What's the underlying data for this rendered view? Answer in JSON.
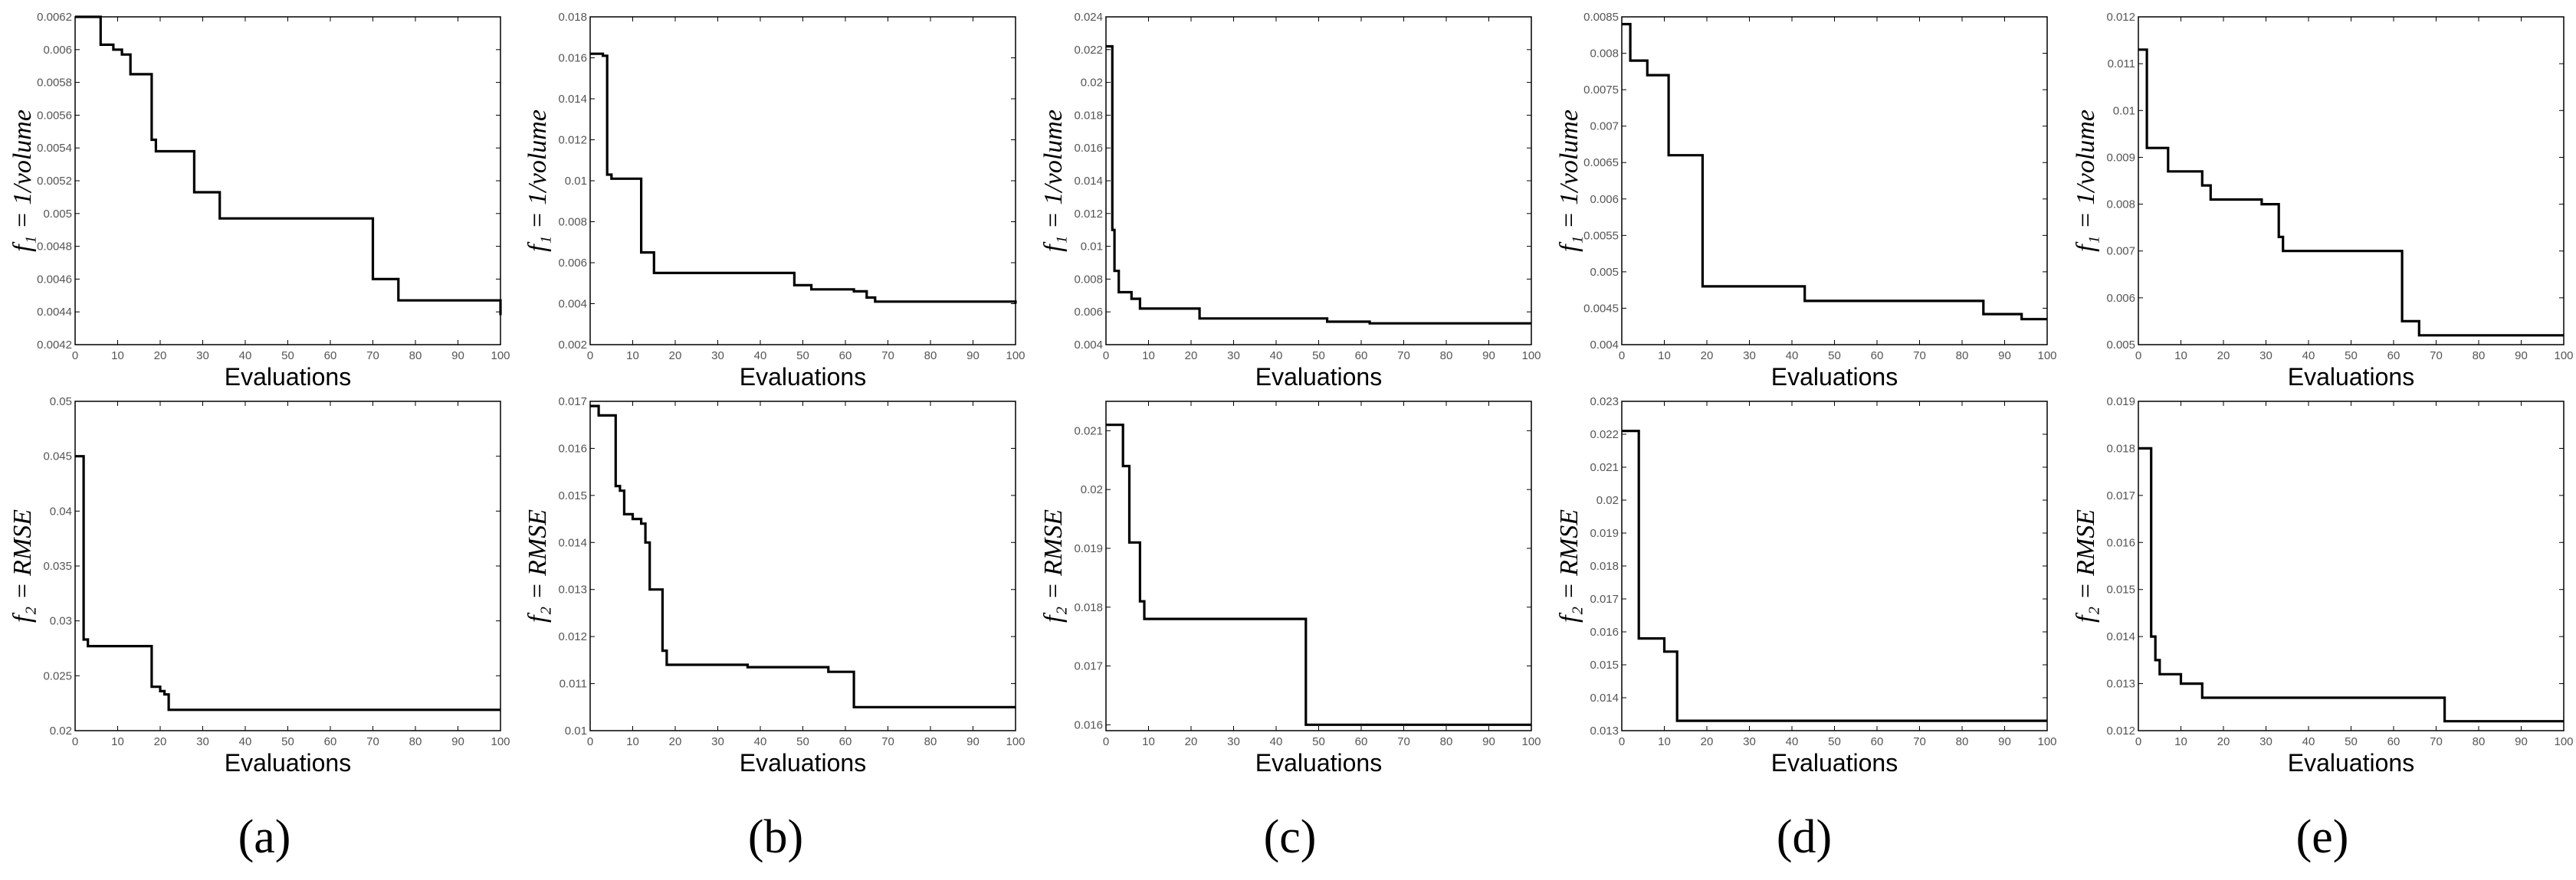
{
  "chart_data": [
    {
      "panel": "a",
      "row": 1,
      "type": "line",
      "title": "",
      "xlabel": "Evaluations",
      "ylabel": "f₁ = 1/volume",
      "xlim": [
        0,
        100
      ],
      "ylim": [
        0.0042,
        0.0062
      ],
      "xticks": [
        "0",
        "10",
        "20",
        "30",
        "40",
        "50",
        "60",
        "70",
        "80",
        "90",
        "100"
      ],
      "yticks": [
        "0.0042",
        "0.0044",
        "0.0046",
        "0.0048",
        "0.005",
        "0.0052",
        "0.0054",
        "0.0056",
        "0.0058",
        "0.006",
        "0.0062"
      ],
      "steps": [
        [
          0,
          0.0062
        ],
        [
          6,
          0.00603
        ],
        [
          9,
          0.006
        ],
        [
          11,
          0.00597
        ],
        [
          13,
          0.00585
        ],
        [
          17,
          0.00585
        ],
        [
          18,
          0.00545
        ],
        [
          19,
          0.00538
        ],
        [
          27,
          0.00538
        ],
        [
          28,
          0.00513
        ],
        [
          32,
          0.00513
        ],
        [
          34,
          0.00497
        ],
        [
          69,
          0.00497
        ],
        [
          70,
          0.0046
        ],
        [
          75,
          0.0046
        ],
        [
          76,
          0.00447
        ],
        [
          99,
          0.00447
        ],
        [
          100,
          0.00438
        ]
      ]
    },
    {
      "panel": "b",
      "row": 1,
      "type": "line",
      "title": "",
      "xlabel": "Evaluations",
      "ylabel": "f₁ = 1/volume",
      "xlim": [
        0,
        100
      ],
      "ylim": [
        0.002,
        0.018
      ],
      "xticks": [
        "0",
        "10",
        "20",
        "30",
        "40",
        "50",
        "60",
        "70",
        "80",
        "90",
        "100"
      ],
      "yticks": [
        "0.002",
        "0.004",
        "0.006",
        "0.008",
        "0.01",
        "0.012",
        "0.014",
        "0.016",
        "0.018"
      ],
      "steps": [
        [
          0,
          0.0162
        ],
        [
          3,
          0.0161
        ],
        [
          4,
          0.0103
        ],
        [
          5,
          0.0101
        ],
        [
          11,
          0.0101
        ],
        [
          12,
          0.0065
        ],
        [
          14,
          0.0065
        ],
        [
          15,
          0.0055
        ],
        [
          47,
          0.0055
        ],
        [
          48,
          0.0049
        ],
        [
          52,
          0.0047
        ],
        [
          60,
          0.0047
        ],
        [
          62,
          0.0046
        ],
        [
          65,
          0.0043
        ],
        [
          67,
          0.0041
        ],
        [
          100,
          0.004
        ]
      ]
    },
    {
      "panel": "c",
      "row": 1,
      "type": "line",
      "title": "",
      "xlabel": "Evaluations",
      "ylabel": "f₁ = 1/volume",
      "xlim": [
        0,
        100
      ],
      "ylim": [
        0.004,
        0.024
      ],
      "xticks": [
        "0",
        "10",
        "20",
        "30",
        "40",
        "50",
        "60",
        "70",
        "80",
        "90",
        "100"
      ],
      "yticks": [
        "0.004",
        "0.006",
        "0.008",
        "0.01",
        "0.012",
        "0.014",
        "0.016",
        "0.018",
        "0.02",
        "0.022",
        "0.024"
      ],
      "steps": [
        [
          0,
          0.0222
        ],
        [
          1,
          0.0222
        ],
        [
          1.5,
          0.011
        ],
        [
          2,
          0.0085
        ],
        [
          3,
          0.0072
        ],
        [
          6,
          0.0068
        ],
        [
          8,
          0.0062
        ],
        [
          21,
          0.0062
        ],
        [
          22,
          0.0056
        ],
        [
          51,
          0.0056
        ],
        [
          52,
          0.0054
        ],
        [
          60,
          0.0054
        ],
        [
          62,
          0.0053
        ],
        [
          100,
          0.0053
        ]
      ]
    },
    {
      "panel": "d",
      "row": 1,
      "type": "line",
      "title": "",
      "xlabel": "Evaluations",
      "ylabel": "f₁ = 1/volume",
      "xlim": [
        0,
        100
      ],
      "ylim": [
        0.004,
        0.0085
      ],
      "xticks": [
        "0",
        "10",
        "20",
        "30",
        "40",
        "50",
        "60",
        "70",
        "80",
        "90",
        "100"
      ],
      "yticks": [
        "0.004",
        "0.0045",
        "0.005",
        "0.0055",
        "0.006",
        "0.0065",
        "0.007",
        "0.0075",
        "0.008",
        "0.0085"
      ],
      "steps": [
        [
          0,
          0.0084
        ],
        [
          2,
          0.0079
        ],
        [
          5,
          0.0079
        ],
        [
          6,
          0.0077
        ],
        [
          10,
          0.0077
        ],
        [
          11,
          0.0066
        ],
        [
          18,
          0.0066
        ],
        [
          19,
          0.0048
        ],
        [
          41,
          0.0048
        ],
        [
          43,
          0.0046
        ],
        [
          84,
          0.0046
        ],
        [
          85,
          0.00442
        ],
        [
          92,
          0.00442
        ],
        [
          94,
          0.00435
        ],
        [
          100,
          0.00435
        ]
      ]
    },
    {
      "panel": "e",
      "row": 1,
      "type": "line",
      "title": "",
      "xlabel": "Evaluations",
      "ylabel": "f₁ = 1/volume",
      "xlim": [
        0,
        100
      ],
      "ylim": [
        0.005,
        0.012
      ],
      "xticks": [
        "0",
        "10",
        "20",
        "30",
        "40",
        "50",
        "60",
        "70",
        "80",
        "90",
        "100"
      ],
      "yticks": [
        "0.005",
        "0.006",
        "0.007",
        "0.008",
        "0.009",
        "0.01",
        "0.011",
        "0.012"
      ],
      "steps": [
        [
          0,
          0.0113
        ],
        [
          2,
          0.0092
        ],
        [
          6,
          0.0092
        ],
        [
          7,
          0.0087
        ],
        [
          14,
          0.0087
        ],
        [
          15,
          0.0084
        ],
        [
          17,
          0.0081
        ],
        [
          28,
          0.0081
        ],
        [
          29,
          0.008
        ],
        [
          32,
          0.008
        ],
        [
          33,
          0.0073
        ],
        [
          34,
          0.007
        ],
        [
          61,
          0.007
        ],
        [
          62,
          0.0055
        ],
        [
          65,
          0.0055
        ],
        [
          66,
          0.0052
        ],
        [
          100,
          0.0052
        ]
      ]
    },
    {
      "panel": "a",
      "row": 2,
      "type": "line",
      "title": "",
      "xlabel": "Evaluations",
      "ylabel": "f₂ = RMSE",
      "xlim": [
        0,
        100
      ],
      "ylim": [
        0.02,
        0.05
      ],
      "xticks": [
        "0",
        "10",
        "20",
        "30",
        "40",
        "50",
        "60",
        "70",
        "80",
        "90",
        "100"
      ],
      "yticks": [
        "0.02",
        "0.025",
        "0.03",
        "0.035",
        "0.04",
        "0.045",
        "0.05"
      ],
      "steps": [
        [
          0,
          0.045
        ],
        [
          1.5,
          0.045
        ],
        [
          2,
          0.0283
        ],
        [
          3,
          0.0277
        ],
        [
          17,
          0.0277
        ],
        [
          18,
          0.024
        ],
        [
          20,
          0.0236
        ],
        [
          21,
          0.0233
        ],
        [
          22,
          0.0219
        ],
        [
          100,
          0.0219
        ]
      ]
    },
    {
      "panel": "b",
      "row": 2,
      "type": "line",
      "title": "",
      "xlabel": "Evaluations",
      "ylabel": "f₂ = RMSE",
      "xlim": [
        0,
        100
      ],
      "ylim": [
        0.01,
        0.017
      ],
      "xticks": [
        "0",
        "10",
        "20",
        "30",
        "40",
        "50",
        "60",
        "70",
        "80",
        "90",
        "100"
      ],
      "yticks": [
        "0.01",
        "0.011",
        "0.012",
        "0.013",
        "0.014",
        "0.015",
        "0.016",
        "0.017"
      ],
      "steps": [
        [
          0,
          0.0169
        ],
        [
          2,
          0.0167
        ],
        [
          5,
          0.0167
        ],
        [
          6,
          0.0152
        ],
        [
          7,
          0.0151
        ],
        [
          8,
          0.0146
        ],
        [
          10,
          0.0145
        ],
        [
          12,
          0.0144
        ],
        [
          13,
          0.014
        ],
        [
          14,
          0.013
        ],
        [
          16,
          0.013
        ],
        [
          17,
          0.0117
        ],
        [
          18,
          0.0114
        ],
        [
          36,
          0.0114
        ],
        [
          37,
          0.01135
        ],
        [
          55,
          0.01135
        ],
        [
          56,
          0.01125
        ],
        [
          61,
          0.01125
        ],
        [
          62,
          0.0105
        ],
        [
          100,
          0.0105
        ]
      ]
    },
    {
      "panel": "c",
      "row": 2,
      "type": "line",
      "title": "",
      "xlabel": "Evaluations",
      "ylabel": "f₂ = RMSE",
      "xlim": [
        0,
        100
      ],
      "ylim": [
        0.0159,
        0.0215
      ],
      "xticks": [
        "0",
        "10",
        "20",
        "30",
        "40",
        "50",
        "60",
        "70",
        "80",
        "90",
        "100"
      ],
      "yticks": [
        "0.016",
        "0.017",
        "0.018",
        "0.019",
        "0.02",
        "0.021"
      ],
      "steps": [
        [
          0,
          0.0211
        ],
        [
          3,
          0.0211
        ],
        [
          4,
          0.0204
        ],
        [
          5,
          0.0204
        ],
        [
          5.5,
          0.0191
        ],
        [
          7,
          0.0191
        ],
        [
          8,
          0.0181
        ],
        [
          9,
          0.0178
        ],
        [
          46,
          0.0178
        ],
        [
          47,
          0.016
        ],
        [
          100,
          0.016
        ]
      ]
    },
    {
      "panel": "d",
      "row": 2,
      "type": "line",
      "title": "",
      "xlabel": "Evaluations",
      "ylabel": "f₂ = RMSE",
      "xlim": [
        0,
        100
      ],
      "ylim": [
        0.013,
        0.023
      ],
      "xticks": [
        "0",
        "10",
        "20",
        "30",
        "40",
        "50",
        "60",
        "70",
        "80",
        "90",
        "100"
      ],
      "yticks": [
        "0.013",
        "0.014",
        "0.015",
        "0.016",
        "0.017",
        "0.018",
        "0.019",
        "0.02",
        "0.021",
        "0.022",
        "0.023"
      ],
      "steps": [
        [
          0,
          0.0221
        ],
        [
          3,
          0.0221
        ],
        [
          4,
          0.0158
        ],
        [
          9,
          0.0158
        ],
        [
          10,
          0.0154
        ],
        [
          12,
          0.0154
        ],
        [
          13,
          0.0133
        ],
        [
          100,
          0.0133
        ]
      ]
    },
    {
      "panel": "e",
      "row": 2,
      "type": "line",
      "title": "",
      "xlabel": "Evaluations",
      "ylabel": "f₂ = RMSE",
      "xlim": [
        0,
        100
      ],
      "ylim": [
        0.012,
        0.019
      ],
      "xticks": [
        "0",
        "10",
        "20",
        "30",
        "40",
        "50",
        "60",
        "70",
        "80",
        "90",
        "100"
      ],
      "yticks": [
        "0.012",
        "0.013",
        "0.014",
        "0.015",
        "0.016",
        "0.017",
        "0.018",
        "0.019"
      ],
      "steps": [
        [
          0,
          0.018
        ],
        [
          2,
          0.018
        ],
        [
          3,
          0.014
        ],
        [
          4,
          0.0135
        ],
        [
          5,
          0.0132
        ],
        [
          9,
          0.0132
        ],
        [
          10,
          0.013
        ],
        [
          13,
          0.013
        ],
        [
          15,
          0.0127
        ],
        [
          71,
          0.0127
        ],
        [
          72,
          0.0122
        ],
        [
          100,
          0.0122
        ]
      ]
    }
  ],
  "panel_labels": [
    "(a)",
    "(b)",
    "(c)",
    "(d)",
    "(e)"
  ]
}
